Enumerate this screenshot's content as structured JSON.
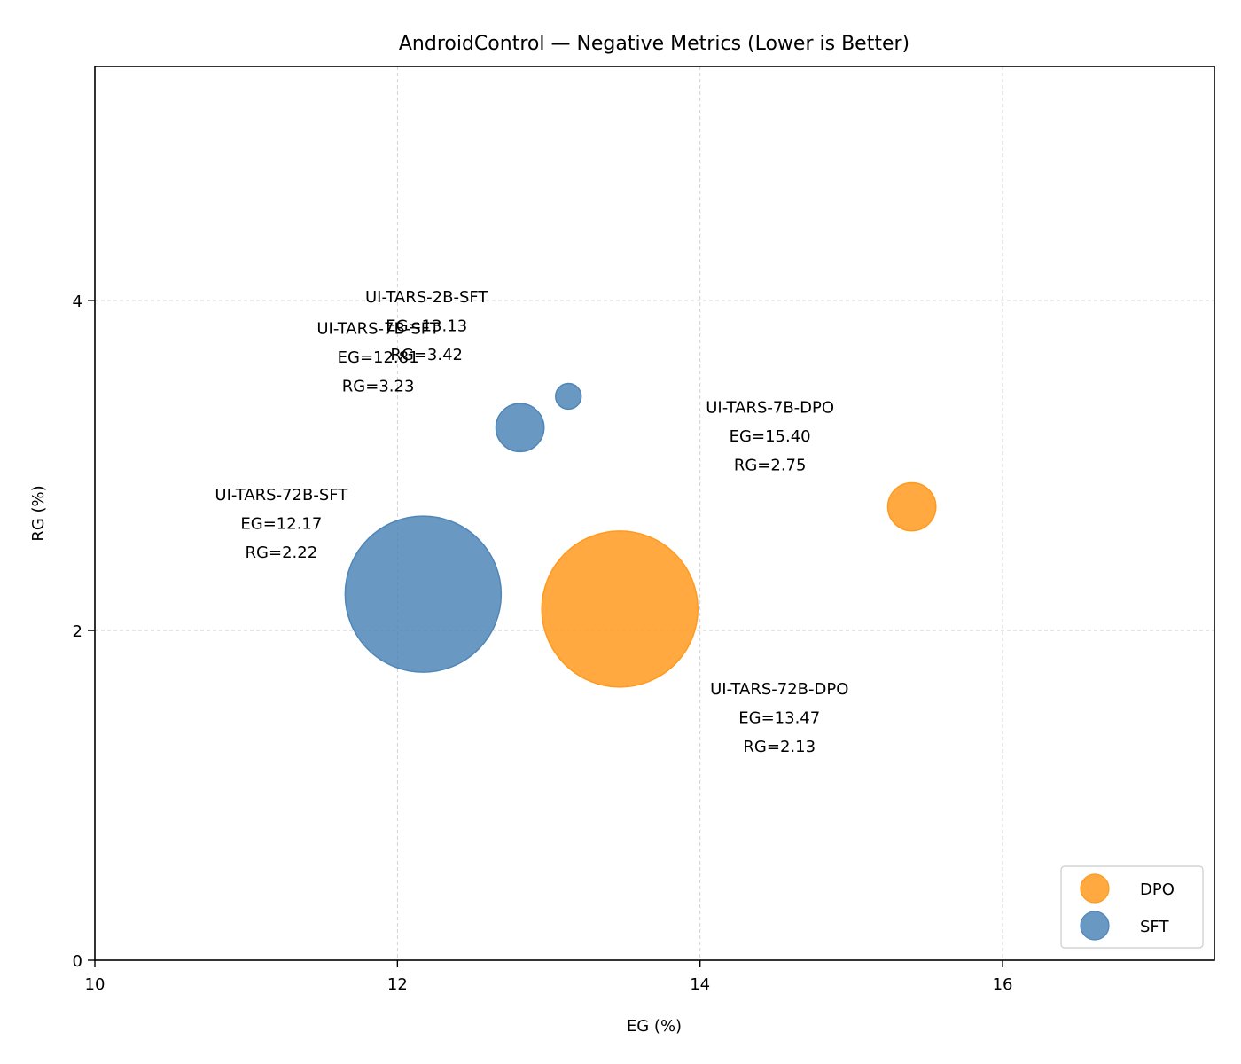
{
  "chart_data": {
    "type": "scatter",
    "title": "AndroidControl — Negative Metrics (Lower is Better)",
    "xlabel": "EG (%)",
    "ylabel": "RG (%)",
    "xlim": [
      10,
      17.4
    ],
    "ylim": [
      0,
      5.42
    ],
    "xticks": [
      10,
      12,
      14,
      16
    ],
    "yticks": [
      0,
      2,
      4
    ],
    "grid": true,
    "legend_position": "bottom-right",
    "series": [
      {
        "name": "DPO",
        "color": "#ff9a1f",
        "points": [
          {
            "label": "UI-TARS-72B-DPO",
            "eg": 13.47,
            "rg": 2.13,
            "size_rel": 1.0,
            "annot_side": "below-right",
            "annot": [
              "UI-TARS-72B-DPO",
              "EG=13.47",
              "RG=2.13"
            ]
          },
          {
            "label": "UI-TARS-7B-DPO",
            "eg": 15.4,
            "rg": 2.75,
            "size_rel": 0.095,
            "annot_side": "above-left",
            "annot": [
              "UI-TARS-7B-DPO",
              "EG=15.40",
              "RG=2.75"
            ]
          }
        ]
      },
      {
        "name": "SFT",
        "color": "#4f86b8",
        "points": [
          {
            "label": "UI-TARS-72B-SFT",
            "eg": 12.17,
            "rg": 2.22,
            "size_rel": 1.0,
            "annot_side": "above-left",
            "annot": [
              "UI-TARS-72B-SFT",
              "EG=12.17",
              "RG=2.22"
            ]
          },
          {
            "label": "UI-TARS-7B-SFT",
            "eg": 12.81,
            "rg": 3.23,
            "size_rel": 0.095,
            "annot_side": "above-left",
            "annot": [
              "UI-TARS-7B-SFT",
              "EG=12.81",
              "RG=3.23"
            ]
          },
          {
            "label": "UI-TARS-2B-SFT",
            "eg": 13.13,
            "rg": 3.42,
            "size_rel": 0.027,
            "annot_side": "above-left",
            "annot": [
              "UI-TARS-2B-SFT",
              "EG=13.13",
              "RG=3.42"
            ]
          }
        ]
      }
    ],
    "legend": [
      "DPO",
      "SFT"
    ]
  }
}
